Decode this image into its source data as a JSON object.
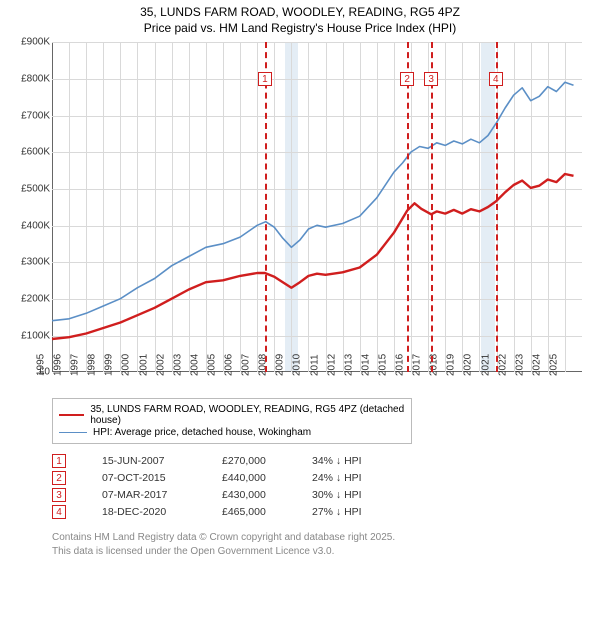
{
  "title": {
    "line1": "35, LUNDS FARM ROAD, WOODLEY, READING, RG5 4PZ",
    "line2": "Price paid vs. HM Land Registry's House Price Index (HPI)"
  },
  "chart": {
    "type": "line",
    "background_color": "#ffffff",
    "shade_color": "#e4edf5",
    "grid_color": "#d9d9d9",
    "axis_color": "#666666",
    "x": {
      "min": 1995,
      "max": 2026,
      "ticks": [
        1995,
        1996,
        1997,
        1998,
        1999,
        2000,
        2001,
        2002,
        2003,
        2004,
        2005,
        2006,
        2007,
        2008,
        2009,
        2010,
        2011,
        2012,
        2013,
        2014,
        2015,
        2016,
        2017,
        2018,
        2019,
        2020,
        2021,
        2022,
        2023,
        2024,
        2025
      ]
    },
    "y": {
      "min": 0,
      "max": 900000,
      "step": 100000,
      "ticks": [
        0,
        100000,
        200000,
        300000,
        400000,
        500000,
        600000,
        700000,
        800000,
        900000
      ],
      "labels": [
        "£0",
        "£100K",
        "£200K",
        "£300K",
        "£400K",
        "£500K",
        "£600K",
        "£700K",
        "£800K",
        "£900K"
      ]
    },
    "shaded_ranges": [
      [
        2008.6,
        2009.4
      ],
      [
        2020.1,
        2020.9
      ]
    ],
    "series": [
      {
        "key": "price_paid",
        "label": "35, LUNDS FARM ROAD, WOODLEY, READING, RG5 4PZ (detached house)",
        "color": "#d01e1e",
        "width": 2.4,
        "points": [
          [
            1995.0,
            90000
          ],
          [
            1996.0,
            95000
          ],
          [
            1997.0,
            105000
          ],
          [
            1998.0,
            120000
          ],
          [
            1999.0,
            135000
          ],
          [
            2000.0,
            155000
          ],
          [
            2001.0,
            175000
          ],
          [
            2002.0,
            200000
          ],
          [
            2003.0,
            225000
          ],
          [
            2004.0,
            245000
          ],
          [
            2005.0,
            250000
          ],
          [
            2006.0,
            262000
          ],
          [
            2007.0,
            270000
          ],
          [
            2007.45,
            270000
          ],
          [
            2008.0,
            260000
          ],
          [
            2008.5,
            245000
          ],
          [
            2009.0,
            230000
          ],
          [
            2009.5,
            245000
          ],
          [
            2010.0,
            262000
          ],
          [
            2010.5,
            268000
          ],
          [
            2011.0,
            265000
          ],
          [
            2012.0,
            272000
          ],
          [
            2013.0,
            285000
          ],
          [
            2014.0,
            320000
          ],
          [
            2015.0,
            380000
          ],
          [
            2015.77,
            440000
          ],
          [
            2016.2,
            460000
          ],
          [
            2016.6,
            445000
          ],
          [
            2017.18,
            430000
          ],
          [
            2017.5,
            438000
          ],
          [
            2018.0,
            432000
          ],
          [
            2018.5,
            442000
          ],
          [
            2019.0,
            432000
          ],
          [
            2019.5,
            444000
          ],
          [
            2020.0,
            438000
          ],
          [
            2020.5,
            450000
          ],
          [
            2020.96,
            465000
          ],
          [
            2021.5,
            490000
          ],
          [
            2022.0,
            510000
          ],
          [
            2022.5,
            522000
          ],
          [
            2023.0,
            502000
          ],
          [
            2023.5,
            508000
          ],
          [
            2024.0,
            525000
          ],
          [
            2024.5,
            518000
          ],
          [
            2025.0,
            540000
          ],
          [
            2025.5,
            535000
          ]
        ]
      },
      {
        "key": "hpi",
        "label": "HPI: Average price, detached house, Wokingham",
        "color": "#5b8fc6",
        "width": 1.6,
        "points": [
          [
            1995.0,
            140000
          ],
          [
            1996.0,
            145000
          ],
          [
            1997.0,
            160000
          ],
          [
            1998.0,
            180000
          ],
          [
            1999.0,
            200000
          ],
          [
            2000.0,
            230000
          ],
          [
            2001.0,
            255000
          ],
          [
            2002.0,
            290000
          ],
          [
            2003.0,
            315000
          ],
          [
            2004.0,
            340000
          ],
          [
            2005.0,
            350000
          ],
          [
            2006.0,
            368000
          ],
          [
            2007.0,
            400000
          ],
          [
            2007.5,
            410000
          ],
          [
            2008.0,
            395000
          ],
          [
            2008.5,
            365000
          ],
          [
            2009.0,
            340000
          ],
          [
            2009.5,
            360000
          ],
          [
            2010.0,
            390000
          ],
          [
            2010.5,
            400000
          ],
          [
            2011.0,
            395000
          ],
          [
            2012.0,
            405000
          ],
          [
            2013.0,
            425000
          ],
          [
            2014.0,
            475000
          ],
          [
            2015.0,
            545000
          ],
          [
            2015.5,
            570000
          ],
          [
            2016.0,
            600000
          ],
          [
            2016.5,
            615000
          ],
          [
            2017.0,
            610000
          ],
          [
            2017.5,
            625000
          ],
          [
            2018.0,
            618000
          ],
          [
            2018.5,
            630000
          ],
          [
            2019.0,
            622000
          ],
          [
            2019.5,
            635000
          ],
          [
            2020.0,
            625000
          ],
          [
            2020.5,
            645000
          ],
          [
            2021.0,
            680000
          ],
          [
            2021.5,
            720000
          ],
          [
            2022.0,
            755000
          ],
          [
            2022.5,
            775000
          ],
          [
            2023.0,
            740000
          ],
          [
            2023.5,
            752000
          ],
          [
            2024.0,
            778000
          ],
          [
            2024.5,
            765000
          ],
          [
            2025.0,
            790000
          ],
          [
            2025.5,
            782000
          ]
        ]
      }
    ],
    "markers": [
      {
        "n": "1",
        "x": 2007.45,
        "box_y": 800000
      },
      {
        "n": "2",
        "x": 2015.77,
        "box_y": 800000
      },
      {
        "n": "3",
        "x": 2017.18,
        "box_y": 800000
      },
      {
        "n": "4",
        "x": 2020.96,
        "box_y": 800000
      }
    ]
  },
  "legend": {
    "rows": [
      {
        "color": "#d01e1e",
        "width": 2.4,
        "label": "35, LUNDS FARM ROAD, WOODLEY, READING, RG5 4PZ (detached house)"
      },
      {
        "color": "#5b8fc6",
        "width": 1.6,
        "label": "HPI: Average price, detached house, Wokingham"
      }
    ]
  },
  "sales": [
    {
      "n": "1",
      "date": "15-JUN-2007",
      "price": "£270,000",
      "diff": "34% ↓ HPI"
    },
    {
      "n": "2",
      "date": "07-OCT-2015",
      "price": "£440,000",
      "diff": "24% ↓ HPI"
    },
    {
      "n": "3",
      "date": "07-MAR-2017",
      "price": "£430,000",
      "diff": "30% ↓ HPI"
    },
    {
      "n": "4",
      "date": "18-DEC-2020",
      "price": "£465,000",
      "diff": "27% ↓ HPI"
    }
  ],
  "footnote": {
    "l1": "Contains HM Land Registry data © Crown copyright and database right 2025.",
    "l2": "This data is licensed under the Open Government Licence v3.0."
  }
}
